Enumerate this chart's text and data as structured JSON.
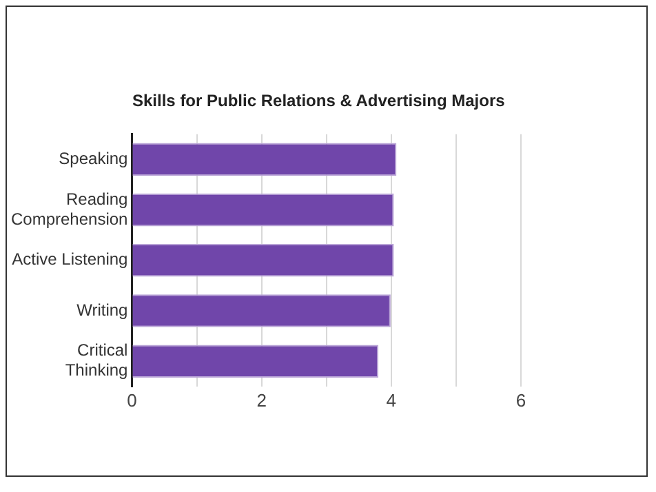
{
  "chart_data": {
    "type": "bar",
    "orientation": "horizontal",
    "title": "Skills for Public Relations & Advertising Majors",
    "categories": [
      "Speaking",
      "Reading\nComprehension",
      "Active Listening",
      "Writing",
      "Critical\nThinking"
    ],
    "values": [
      4.08,
      4.04,
      4.04,
      3.99,
      3.8
    ],
    "color": "#7046aa",
    "xlim": [
      0,
      6
    ],
    "xticks": [
      0,
      {
        "value": 1,
        "label": null
      },
      2,
      {
        "value": 3,
        "label": null
      },
      4,
      {
        "value": 5,
        "label": null
      },
      6
    ],
    "grid": "x"
  }
}
